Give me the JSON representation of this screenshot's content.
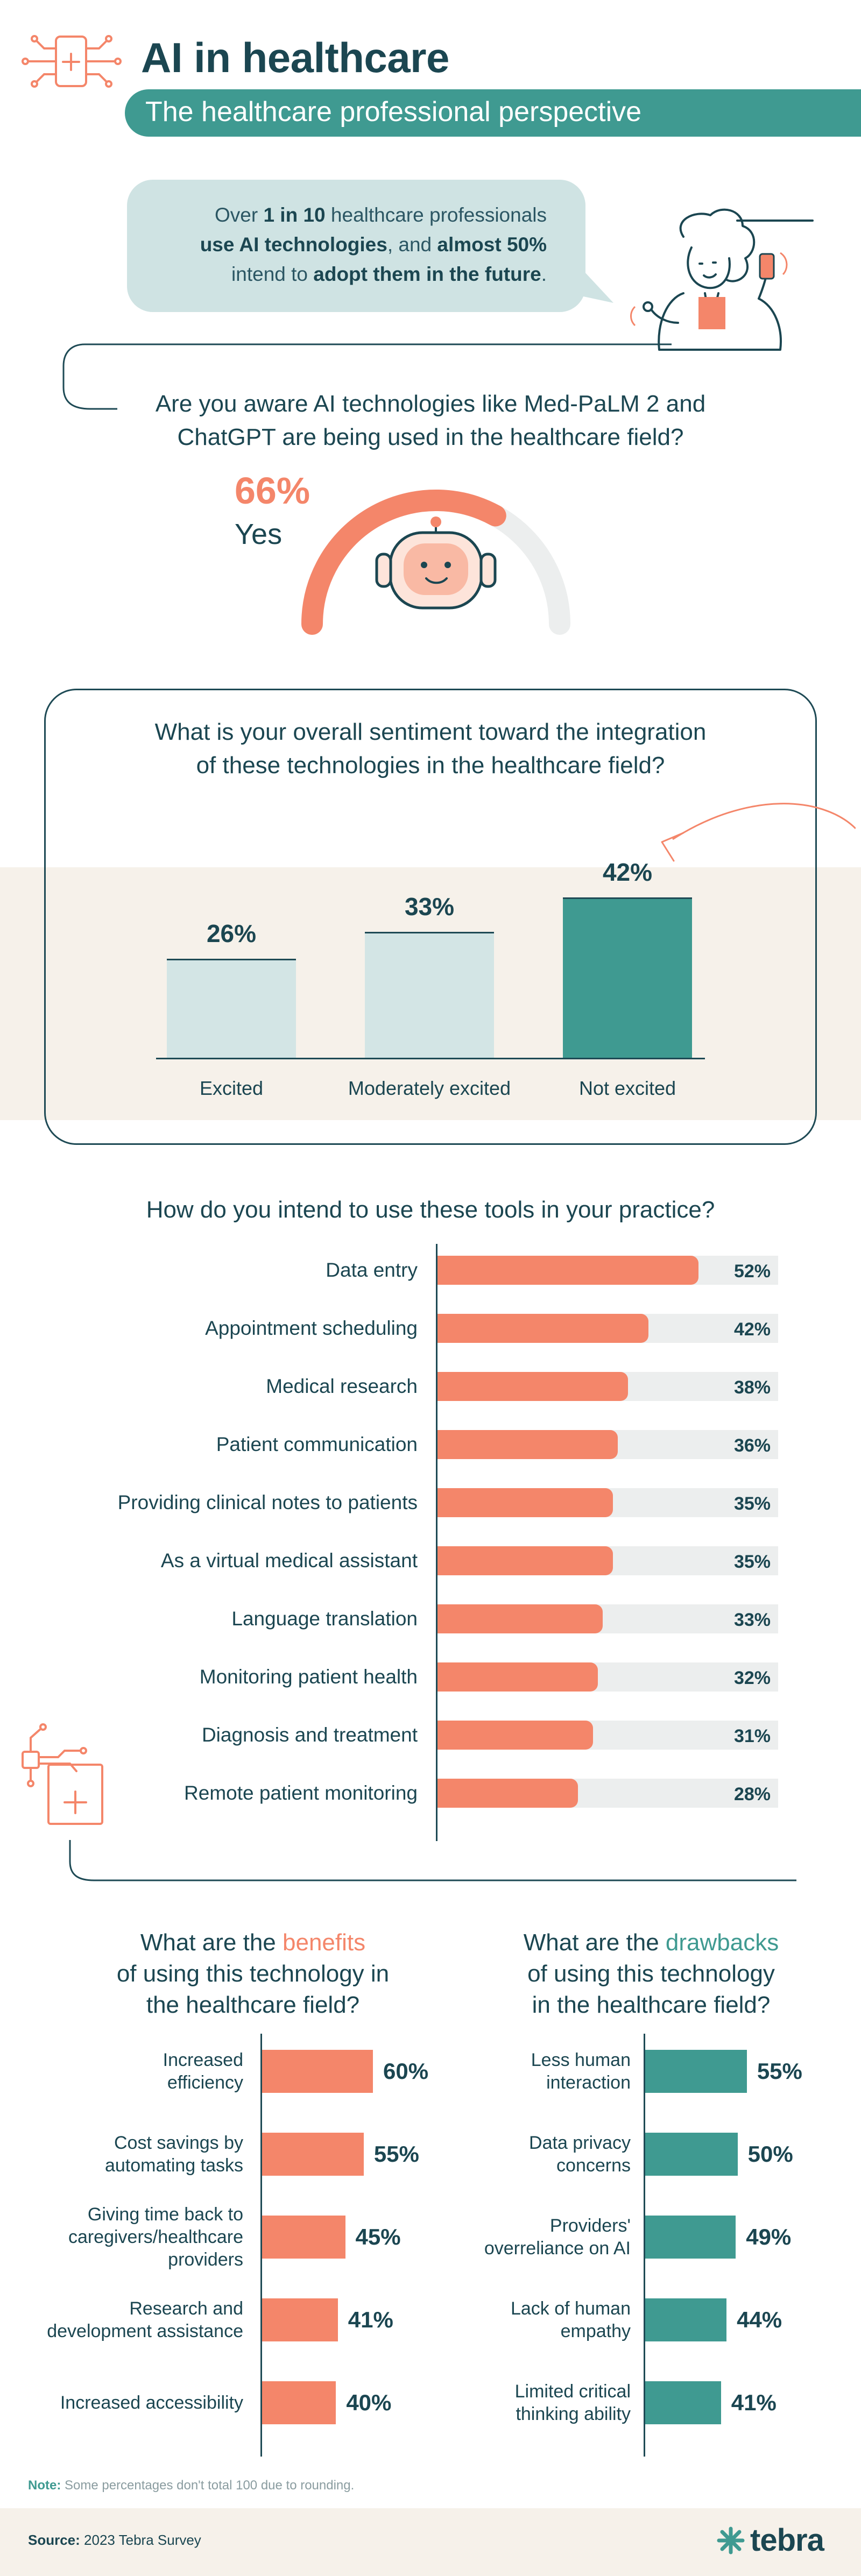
{
  "header": {
    "title": "AI in healthcare",
    "subtitle": "The healthcare professional perspective"
  },
  "intro": {
    "line1_pre": "Over ",
    "line1_bold": "1 in 10",
    "line1_post": " healthcare professionals",
    "line2_bold": "use AI technologies",
    "line2_mid": ", and ",
    "line2_bold2": "almost 50%",
    "line3_pre": "intend to ",
    "line3_bold": "adopt them in the future",
    "line3_post": "."
  },
  "awareness": {
    "question_line1": "Are you aware AI technologies like Med-PaLM 2 and",
    "question_line2": "ChatGPT are being used in the healthcare field?",
    "percent": "66%",
    "answer": "Yes",
    "value": 66
  },
  "sentiment": {
    "question_line1": "What is your overall sentiment toward the integration",
    "question_line2": "of these technologies in the healthcare field?",
    "bars": [
      {
        "label": "Excited",
        "value": 26,
        "display": "26%",
        "color": "#d3e5e5"
      },
      {
        "label": "Moderately excited",
        "value": 33,
        "display": "33%",
        "color": "#d3e5e5"
      },
      {
        "label": "Not excited",
        "value": 42,
        "display": "42%",
        "color": "#3f9a91"
      }
    ]
  },
  "usage": {
    "question": "How do you intend to use these tools in your practice?",
    "items": [
      {
        "label": "Data entry",
        "value": 52,
        "display": "52%"
      },
      {
        "label": "Appointment scheduling",
        "value": 42,
        "display": "42%"
      },
      {
        "label": "Medical research",
        "value": 38,
        "display": "38%"
      },
      {
        "label": "Patient communication",
        "value": 36,
        "display": "36%"
      },
      {
        "label": "Providing clinical notes to patients",
        "value": 35,
        "display": "35%"
      },
      {
        "label": "As a virtual medical assistant",
        "value": 35,
        "display": "35%"
      },
      {
        "label": "Language translation",
        "value": 33,
        "display": "33%"
      },
      {
        "label": "Monitoring patient health",
        "value": 32,
        "display": "32%"
      },
      {
        "label": "Diagnosis and treatment",
        "value": 31,
        "display": "31%"
      },
      {
        "label": "Remote patient monitoring",
        "value": 28,
        "display": "28%"
      }
    ]
  },
  "benefits": {
    "q_line1_pre": "What are the ",
    "q_line1_hl": "benefits",
    "q_line2": "of using this technology in",
    "q_line3": "the healthcare field?",
    "items": [
      {
        "line1": "Increased",
        "line2": "efficiency",
        "line3": "",
        "value": 60,
        "display": "60%"
      },
      {
        "line1": "Cost savings by",
        "line2": "automating tasks",
        "line3": "",
        "value": 55,
        "display": "55%"
      },
      {
        "line1": "Giving time back to",
        "line2": "caregivers/healthcare",
        "line3": "providers",
        "value": 45,
        "display": "45%"
      },
      {
        "line1": "Research and",
        "line2": "development assistance",
        "line3": "",
        "value": 41,
        "display": "41%"
      },
      {
        "line1": "Increased accessibility",
        "line2": "",
        "line3": "",
        "value": 40,
        "display": "40%"
      }
    ]
  },
  "drawbacks": {
    "q_line1_pre": "What are the ",
    "q_line1_hl": "drawbacks",
    "q_line2": "of using this technology",
    "q_line3": "in the healthcare field?",
    "items": [
      {
        "line1": "Less human",
        "line2": "interaction",
        "value": 55,
        "display": "55%"
      },
      {
        "line1": "Data privacy",
        "line2": "concerns",
        "value": 50,
        "display": "50%"
      },
      {
        "line1": "Providers'",
        "line2": "overreliance on AI",
        "value": 49,
        "display": "49%"
      },
      {
        "line1": "Lack of human",
        "line2": "empathy",
        "value": 44,
        "display": "44%"
      },
      {
        "line1": "Limited critical",
        "line2": "thinking ability",
        "value": 41,
        "display": "41%"
      }
    ]
  },
  "footer": {
    "note_label": "Note:",
    "note_text": " Some percentages don't total 100 due to rounding.",
    "source_label": "Source:",
    "source_text": " 2023 Tebra Survey",
    "brand": "tebra"
  },
  "colors": {
    "orange": "#f4866a",
    "teal": "#3f9a91",
    "navy": "#1b4651",
    "light_teal": "#d3e5e5"
  }
}
